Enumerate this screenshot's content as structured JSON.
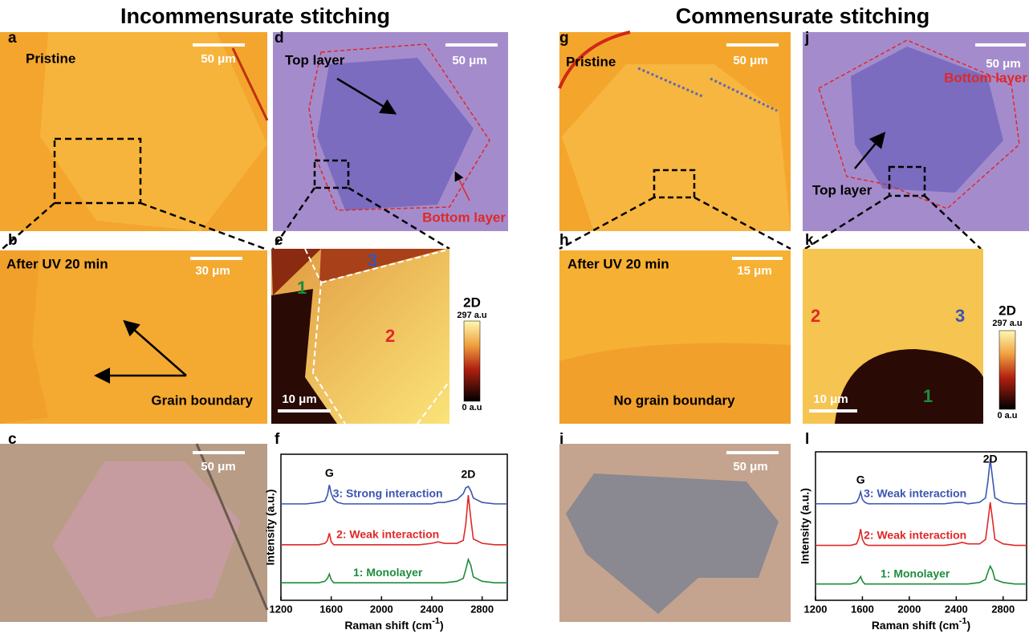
{
  "headings": {
    "left": "Incommensurate stitching",
    "right": "Commensurate stitching"
  },
  "panels": {
    "a": {
      "letter": "a",
      "label": "Pristine",
      "scale": "50 μm"
    },
    "b": {
      "letter": "b",
      "label": "After UV 20 min",
      "scale": "30 μm",
      "annotation": "Grain boundary"
    },
    "c": {
      "letter": "c",
      "scale": "50 μm"
    },
    "d": {
      "letter": "d",
      "top": "Top layer",
      "scale": "50 μm",
      "bottom": "Bottom layer"
    },
    "e": {
      "letter": "e",
      "regions": [
        "1",
        "2",
        "3"
      ],
      "scale": "10 μm",
      "colorbar": {
        "title": "2D",
        "max": "297 a.u",
        "min": "0 a.u"
      }
    },
    "f": {
      "letter": "f"
    },
    "g": {
      "letter": "g",
      "label": "Pristine",
      "scale": "50 μm"
    },
    "h": {
      "letter": "h",
      "label": "After UV 20 min",
      "scale": "15 μm",
      "annotation": "No grain boundary"
    },
    "i": {
      "letter": "i",
      "scale": "50 μm"
    },
    "j": {
      "letter": "j",
      "scale": "50 μm",
      "bottom": "Bottom layer",
      "top": "Top layer"
    },
    "k": {
      "letter": "k",
      "regions": [
        "1",
        "2",
        "3"
      ],
      "scale": "10 μm",
      "colorbar": {
        "title": "2D",
        "max": "297 a.u",
        "min": "0 a.u"
      }
    },
    "l": {
      "letter": "l"
    }
  },
  "chart_data": [
    {
      "type": "line",
      "ylabel": "Intensity (a.u.)",
      "xlabel": {
        "text": "Raman shift (cm",
        "superscript": "-1",
        "end": ")"
      },
      "annotations": [
        "G",
        "2D"
      ],
      "xlim": [
        1200,
        3000
      ],
      "xticks": [
        1200,
        1600,
        2000,
        2400,
        2800
      ],
      "ylim": [
        0,
        10
      ],
      "x": [
        1200,
        1300,
        1400,
        1500,
        1550,
        1570,
        1585,
        1600,
        1620,
        1650,
        1700,
        1800,
        1900,
        2000,
        2100,
        2200,
        2300,
        2400,
        2450,
        2500,
        2600,
        2650,
        2670,
        2690,
        2710,
        2730,
        2800,
        2900,
        3000
      ],
      "series": [
        {
          "name": "3: Strong interaction",
          "color": "#3a56b0",
          "values": [
            6.6,
            6.6,
            6.6,
            6.7,
            6.8,
            7.2,
            7.9,
            7.3,
            6.9,
            6.7,
            6.6,
            6.6,
            6.6,
            6.6,
            6.6,
            6.6,
            6.6,
            6.6,
            6.7,
            6.7,
            6.9,
            7.3,
            7.7,
            7.8,
            7.5,
            7.0,
            6.7,
            6.6,
            6.6
          ]
        },
        {
          "name": "2: Weak interaction",
          "color": "#e02828",
          "values": [
            3.8,
            3.8,
            3.8,
            3.8,
            3.9,
            4.1,
            4.6,
            4.0,
            3.8,
            3.8,
            3.8,
            3.8,
            3.8,
            3.8,
            3.8,
            3.8,
            3.8,
            3.9,
            4.0,
            3.9,
            3.9,
            4.1,
            5.2,
            7.2,
            5.6,
            4.2,
            3.9,
            3.8,
            3.8
          ]
        },
        {
          "name": "1: Monolayer",
          "color": "#1e8c3c",
          "values": [
            1.2,
            1.2,
            1.2,
            1.2,
            1.3,
            1.5,
            1.8,
            1.4,
            1.2,
            1.2,
            1.2,
            1.2,
            1.2,
            1.2,
            1.2,
            1.2,
            1.2,
            1.2,
            1.2,
            1.2,
            1.3,
            1.5,
            2.1,
            2.8,
            2.4,
            1.6,
            1.3,
            1.2,
            1.2
          ]
        }
      ]
    },
    {
      "type": "line",
      "ylabel": "Intensity (a.u.)",
      "xlabel": {
        "text": "Raman shift (cm",
        "superscript": "-1",
        "end": ")"
      },
      "annotations": [
        "G",
        "2D"
      ],
      "xlim": [
        1200,
        3000
      ],
      "xticks": [
        1200,
        1600,
        2000,
        2400,
        2800
      ],
      "ylim": [
        0,
        10
      ],
      "x": [
        1200,
        1300,
        1400,
        1500,
        1550,
        1570,
        1585,
        1600,
        1620,
        1650,
        1700,
        1800,
        1900,
        2000,
        2100,
        2200,
        2300,
        2400,
        2450,
        2500,
        2600,
        2650,
        2670,
        2690,
        2710,
        2730,
        2800,
        2900,
        3000
      ],
      "series": [
        {
          "name": "3: Weak interaction",
          "color": "#3a56b0",
          "values": [
            6.5,
            6.5,
            6.5,
            6.5,
            6.6,
            6.9,
            7.3,
            6.8,
            6.6,
            6.5,
            6.5,
            6.5,
            6.5,
            6.5,
            6.5,
            6.5,
            6.5,
            6.6,
            6.6,
            6.5,
            6.6,
            6.9,
            8.0,
            9.5,
            8.2,
            6.9,
            6.6,
            6.5,
            6.5
          ]
        },
        {
          "name": "2: Weak interaction",
          "color": "#e02828",
          "values": [
            3.7,
            3.7,
            3.7,
            3.7,
            3.8,
            4.2,
            4.8,
            4.1,
            3.8,
            3.7,
            3.7,
            3.7,
            3.7,
            3.7,
            3.7,
            3.7,
            3.7,
            3.8,
            3.9,
            3.8,
            3.8,
            4.1,
            5.3,
            6.6,
            5.4,
            4.1,
            3.8,
            3.7,
            3.7
          ]
        },
        {
          "name": "1: Monolayer",
          "color": "#1e8c3c",
          "values": [
            1.1,
            1.1,
            1.1,
            1.1,
            1.2,
            1.4,
            1.6,
            1.3,
            1.1,
            1.1,
            1.1,
            1.1,
            1.1,
            1.1,
            1.1,
            1.1,
            1.1,
            1.1,
            1.1,
            1.1,
            1.2,
            1.4,
            1.9,
            2.3,
            2.0,
            1.4,
            1.2,
            1.1,
            1.1
          ]
        }
      ]
    }
  ]
}
